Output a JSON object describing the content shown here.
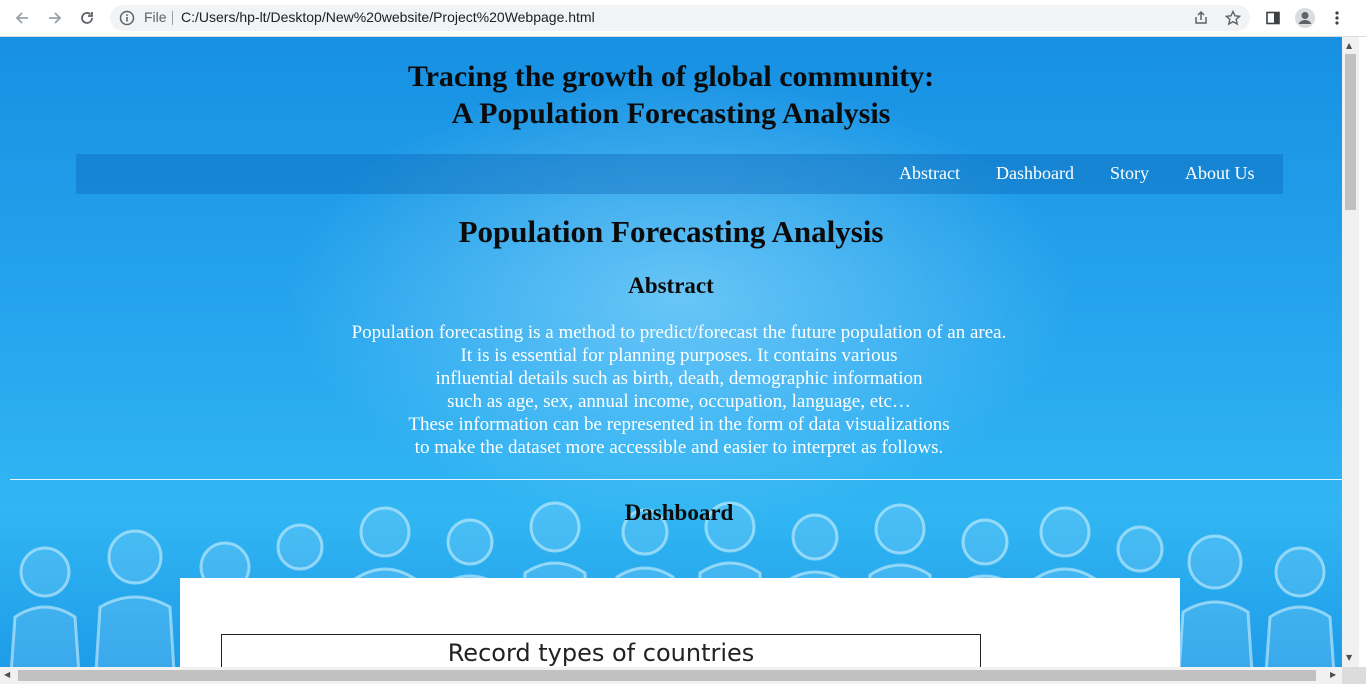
{
  "browser": {
    "file_label": "File",
    "url": "C:/Users/hp-lt/Desktop/New%20website/Project%20Webpage.html"
  },
  "page": {
    "title_line1": "Tracing the growth of global community:",
    "title_line2": "A Population Forecasting Analysis",
    "nav": [
      "Abstract",
      "Dashboard",
      "Story",
      "About Us"
    ],
    "main_heading": "Population Forecasting Analysis",
    "abstract_heading": "Abstract",
    "abstract_lines": [
      "Population forecasting is a method to predict/forecast the future population of an area.",
      "It is is essential for planning purposes. It contains various",
      "influential details such as birth, death, demographic information",
      "such as age, sex, annual income, occupation, language, etc…",
      "These information can be represented in the form of data visualizations",
      "to make the dataset more accessible and easier to interpret as follows."
    ],
    "dashboard_heading": "Dashboard",
    "viz_title": "Record types of countries"
  },
  "colors": {
    "page_blue": "#1e9ce8",
    "nav_text": "#ffffff",
    "heading_text": "#0b0b0b"
  }
}
